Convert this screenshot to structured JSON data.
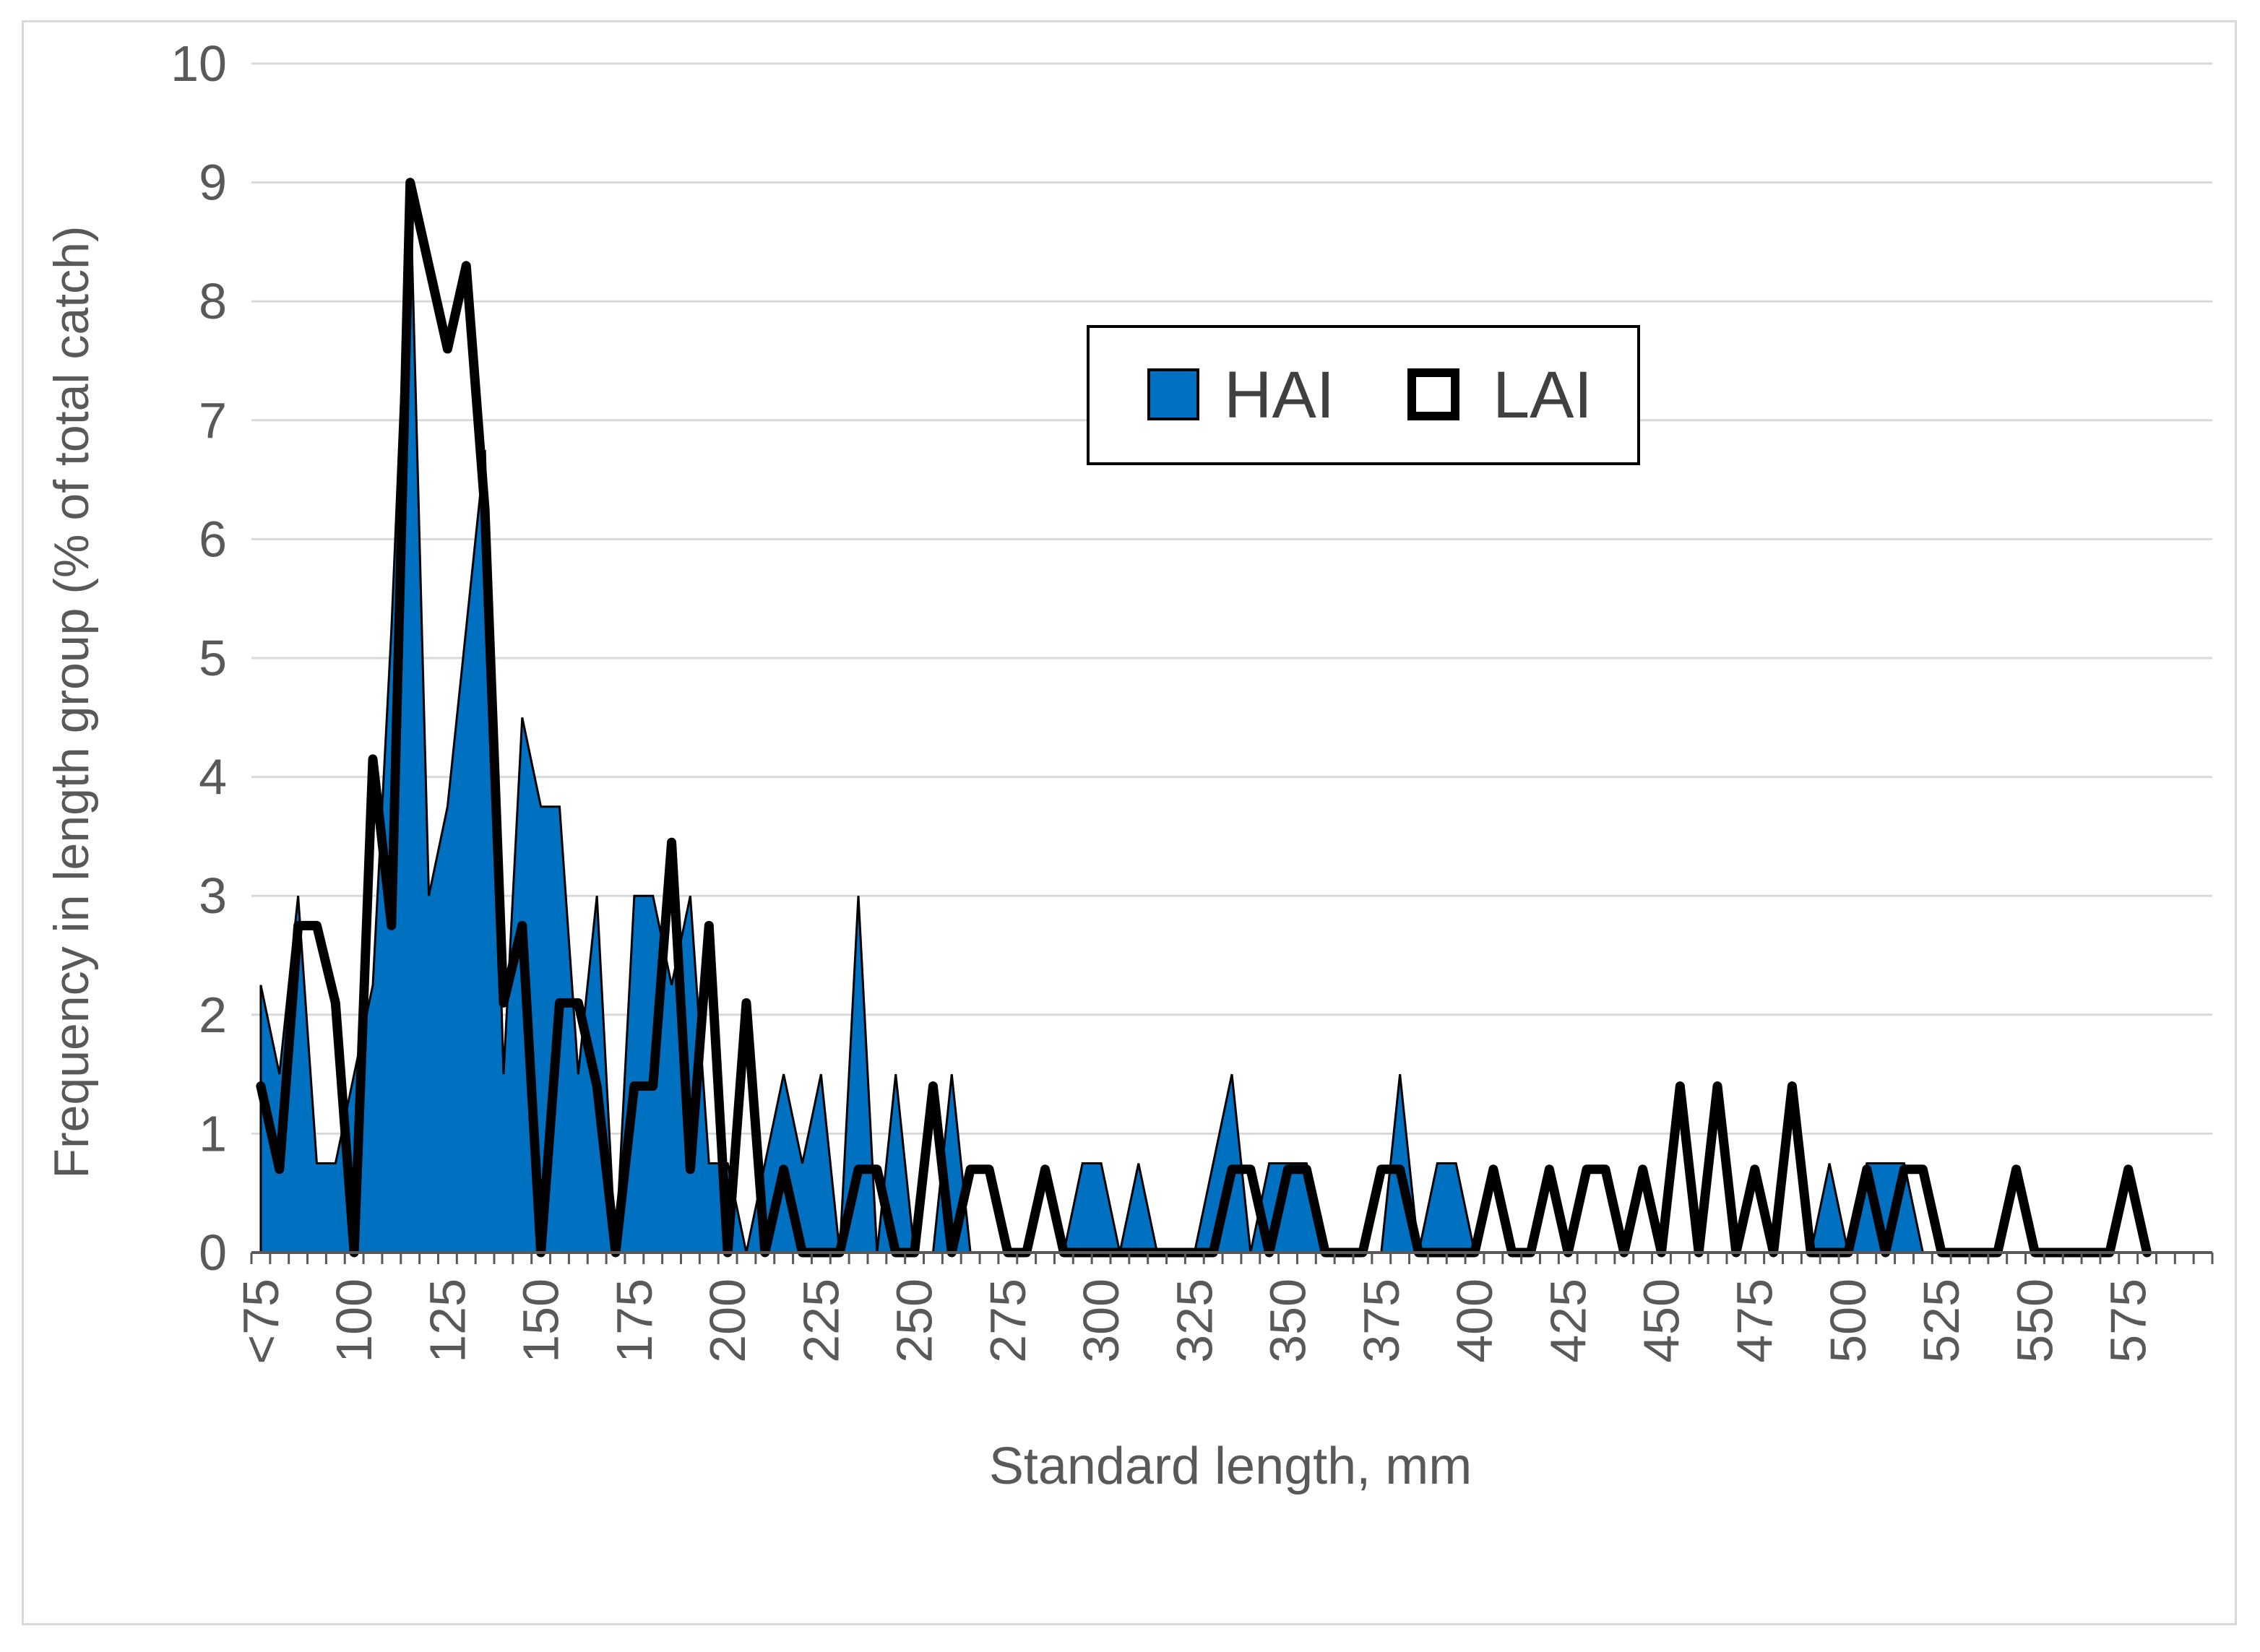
{
  "chart_data": {
    "type": "area",
    "xlabel": "Standard length, mm",
    "ylabel": "Frequency in length group (% of total catch)",
    "ylim": [
      0,
      10
    ],
    "yticks": [
      0,
      1,
      2,
      3,
      4,
      5,
      6,
      7,
      8,
      9,
      10
    ],
    "xlim": [
      72.5,
      597.5
    ],
    "xticks": [
      {
        "label": "<75",
        "value": 75
      },
      {
        "label": "100",
        "value": 100
      },
      {
        "label": "125",
        "value": 125
      },
      {
        "label": "150",
        "value": 150
      },
      {
        "label": "175",
        "value": 175
      },
      {
        "label": "200",
        "value": 200
      },
      {
        "label": "225",
        "value": 225
      },
      {
        "label": "250",
        "value": 250
      },
      {
        "label": "275",
        "value": 275
      },
      {
        "label": "300",
        "value": 300
      },
      {
        "label": "325",
        "value": 325
      },
      {
        "label": "350",
        "value": 350
      },
      {
        "label": "375",
        "value": 375
      },
      {
        "label": "400",
        "value": 400
      },
      {
        "label": "425",
        "value": 425
      },
      {
        "label": "450",
        "value": 450
      },
      {
        "label": "475",
        "value": 475
      },
      {
        "label": "500",
        "value": 500
      },
      {
        "label": "525",
        "value": 525
      },
      {
        "label": "550",
        "value": 550
      },
      {
        "label": "575",
        "value": 575
      }
    ],
    "legend": {
      "position": "top-center"
    },
    "grid": true,
    "series": [
      {
        "name": "HAI",
        "style": "area",
        "color": "#0070c0",
        "edge_color": "#000000",
        "points": [
          [
            75,
            2.25
          ],
          [
            80,
            1.5
          ],
          [
            85,
            3.0
          ],
          [
            90,
            0.75
          ],
          [
            95,
            0.75
          ],
          [
            100,
            1.5
          ],
          [
            105,
            2.25
          ],
          [
            110,
            5.25
          ],
          [
            115,
            9.0
          ],
          [
            120,
            3.0
          ],
          [
            125,
            3.75
          ],
          [
            130,
            5.25
          ],
          [
            135,
            6.75
          ],
          [
            140,
            1.5
          ],
          [
            145,
            4.5
          ],
          [
            150,
            3.75
          ],
          [
            155,
            3.75
          ],
          [
            160,
            1.5
          ],
          [
            165,
            3.0
          ],
          [
            170,
            0
          ],
          [
            175,
            3.0
          ],
          [
            180,
            3.0
          ],
          [
            185,
            2.25
          ],
          [
            190,
            3.0
          ],
          [
            195,
            0.75
          ],
          [
            200,
            0.75
          ],
          [
            205,
            0
          ],
          [
            210,
            0.75
          ],
          [
            215,
            1.5
          ],
          [
            220,
            0.75
          ],
          [
            225,
            1.5
          ],
          [
            230,
            0
          ],
          [
            235,
            3.0
          ],
          [
            240,
            0
          ],
          [
            245,
            1.5
          ],
          [
            250,
            0
          ],
          [
            255,
            0
          ],
          [
            260,
            1.5
          ],
          [
            265,
            0
          ],
          [
            270,
            0
          ],
          [
            275,
            0
          ],
          [
            280,
            0
          ],
          [
            285,
            0
          ],
          [
            290,
            0
          ],
          [
            295,
            0.75
          ],
          [
            300,
            0.75
          ],
          [
            305,
            0
          ],
          [
            310,
            0.75
          ],
          [
            315,
            0
          ],
          [
            320,
            0
          ],
          [
            325,
            0
          ],
          [
            330,
            0.75
          ],
          [
            335,
            1.5
          ],
          [
            340,
            0
          ],
          [
            345,
            0.75
          ],
          [
            350,
            0.75
          ],
          [
            355,
            0.75
          ],
          [
            360,
            0
          ],
          [
            365,
            0
          ],
          [
            370,
            0
          ],
          [
            375,
            0
          ],
          [
            380,
            1.5
          ],
          [
            385,
            0
          ],
          [
            390,
            0.75
          ],
          [
            395,
            0.75
          ],
          [
            400,
            0
          ],
          [
            405,
            0
          ],
          [
            410,
            0
          ],
          [
            415,
            0
          ],
          [
            420,
            0
          ],
          [
            425,
            0
          ],
          [
            430,
            0
          ],
          [
            435,
            0
          ],
          [
            440,
            0
          ],
          [
            445,
            0
          ],
          [
            450,
            0
          ],
          [
            455,
            0
          ],
          [
            460,
            0
          ],
          [
            465,
            0
          ],
          [
            470,
            0
          ],
          [
            475,
            0
          ],
          [
            480,
            0
          ],
          [
            485,
            0
          ],
          [
            490,
            0
          ],
          [
            495,
            0.75
          ],
          [
            500,
            0
          ],
          [
            505,
            0.75
          ],
          [
            510,
            0.75
          ],
          [
            515,
            0.75
          ],
          [
            520,
            0
          ]
        ]
      },
      {
        "name": "LAI",
        "style": "line",
        "color": "#000000",
        "points": [
          [
            75,
            1.4
          ],
          [
            80,
            0.7
          ],
          [
            85,
            2.75
          ],
          [
            90,
            2.75
          ],
          [
            95,
            2.1
          ],
          [
            100,
            0
          ],
          [
            105,
            4.15
          ],
          [
            110,
            2.75
          ],
          [
            115,
            9.0
          ],
          [
            120,
            8.3
          ],
          [
            125,
            7.6
          ],
          [
            130,
            8.3
          ],
          [
            135,
            6.25
          ],
          [
            140,
            2.1
          ],
          [
            145,
            2.75
          ],
          [
            150,
            0
          ],
          [
            155,
            2.1
          ],
          [
            160,
            2.1
          ],
          [
            165,
            1.4
          ],
          [
            170,
            0
          ],
          [
            175,
            1.4
          ],
          [
            180,
            1.4
          ],
          [
            185,
            3.45
          ],
          [
            190,
            0.7
          ],
          [
            195,
            2.75
          ],
          [
            200,
            0
          ],
          [
            205,
            2.1
          ],
          [
            210,
            0
          ],
          [
            215,
            0.7
          ],
          [
            220,
            0
          ],
          [
            225,
            0
          ],
          [
            230,
            0
          ],
          [
            235,
            0.7
          ],
          [
            240,
            0.7
          ],
          [
            245,
            0
          ],
          [
            250,
            0
          ],
          [
            255,
            1.4
          ],
          [
            260,
            0
          ],
          [
            265,
            0.7
          ],
          [
            270,
            0.7
          ],
          [
            275,
            0
          ],
          [
            280,
            0
          ],
          [
            285,
            0.7
          ],
          [
            290,
            0
          ],
          [
            295,
            0
          ],
          [
            300,
            0
          ],
          [
            305,
            0
          ],
          [
            310,
            0
          ],
          [
            315,
            0
          ],
          [
            320,
            0
          ],
          [
            325,
            0
          ],
          [
            330,
            0
          ],
          [
            335,
            0.7
          ],
          [
            340,
            0.7
          ],
          [
            345,
            0
          ],
          [
            350,
            0.7
          ],
          [
            355,
            0.7
          ],
          [
            360,
            0
          ],
          [
            365,
            0
          ],
          [
            370,
            0
          ],
          [
            375,
            0.7
          ],
          [
            380,
            0.7
          ],
          [
            385,
            0
          ],
          [
            390,
            0
          ],
          [
            395,
            0
          ],
          [
            400,
            0
          ],
          [
            405,
            0.7
          ],
          [
            410,
            0
          ],
          [
            415,
            0
          ],
          [
            420,
            0.7
          ],
          [
            425,
            0
          ],
          [
            430,
            0.7
          ],
          [
            435,
            0.7
          ],
          [
            440,
            0
          ],
          [
            445,
            0.7
          ],
          [
            450,
            0
          ],
          [
            455,
            1.4
          ],
          [
            460,
            0
          ],
          [
            465,
            1.4
          ],
          [
            470,
            0
          ],
          [
            475,
            0.7
          ],
          [
            480,
            0
          ],
          [
            485,
            1.4
          ],
          [
            490,
            0
          ],
          [
            495,
            0
          ],
          [
            500,
            0
          ],
          [
            505,
            0.7
          ],
          [
            510,
            0
          ],
          [
            515,
            0.7
          ],
          [
            520,
            0.7
          ],
          [
            525,
            0
          ],
          [
            530,
            0
          ],
          [
            535,
            0
          ],
          [
            540,
            0
          ],
          [
            545,
            0.7
          ],
          [
            550,
            0
          ],
          [
            555,
            0
          ],
          [
            560,
            0
          ],
          [
            565,
            0
          ],
          [
            570,
            0
          ],
          [
            575,
            0.7
          ],
          [
            580,
            0
          ]
        ]
      }
    ]
  }
}
